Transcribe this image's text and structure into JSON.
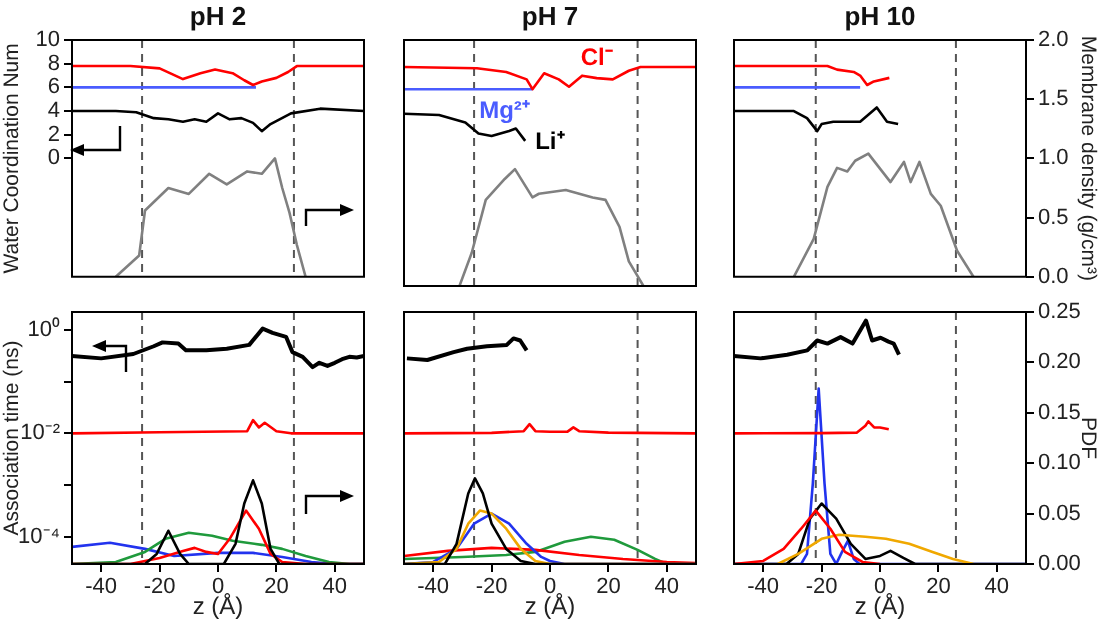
{
  "chart_data": [
    {
      "type": "line",
      "title": "pH 2",
      "ylabel": "Water Coordination Num",
      "xlim": [
        -50,
        50
      ],
      "ylim": [
        -10,
        10
      ],
      "yticks": [
        0,
        2,
        4,
        6,
        8,
        10
      ],
      "y2lim": [
        0,
        2
      ],
      "tick_labels": [
        "y"
      ],
      "marker": "none",
      "ref_lines": [
        {
          "axis": "x",
          "value": -26,
          "line_style": "dashed",
          "color": "#555555"
        },
        {
          "axis": "x",
          "value": 26,
          "line_style": "dashed",
          "color": "#555555"
        }
      ],
      "series": [
        {
          "color": "#ff0000",
          "x": [
            -50,
            -30,
            -20,
            -12,
            -6,
            -1,
            5,
            9,
            12,
            15,
            20,
            24,
            27,
            35,
            50
          ],
          "values": [
            7.8,
            7.8,
            7.6,
            6.7,
            7.2,
            7.5,
            7.2,
            6.6,
            6.2,
            6.5,
            6.8,
            7.3,
            7.8,
            7.8,
            7.8
          ]
        },
        {
          "color": "#4a5cff",
          "x": [
            -50,
            13
          ],
          "values": [
            6,
            6
          ]
        },
        {
          "color": "#000000",
          "x": [
            -50,
            -35,
            -28,
            -22,
            -17,
            -12,
            -8,
            -4,
            0,
            4,
            8,
            12,
            15,
            18,
            25,
            35,
            50
          ],
          "values": [
            4,
            4,
            3.9,
            3.4,
            3.3,
            3.1,
            3.3,
            3.1,
            3.8,
            3.3,
            3.4,
            3.0,
            2.3,
            2.9,
            3.8,
            4.2,
            4.0
          ]
        },
        {
          "color": "#808080",
          "axis": "y2",
          "x": [
            -35,
            -27,
            -25,
            -17,
            -10,
            -3,
            3,
            10,
            15,
            19.5,
            22,
            24.5,
            27,
            30
          ],
          "values": [
            0,
            0.18,
            0.56,
            0.75,
            0.7,
            0.87,
            0.78,
            0.89,
            0.87,
            1.0,
            0.75,
            0.54,
            0.27,
            0
          ]
        }
      ]
    },
    {
      "type": "line",
      "title": "pH 7",
      "xlim": [
        -50,
        50
      ],
      "ylim": [
        -10,
        10
      ],
      "y2lim": [
        0,
        2
      ],
      "tick_labels": false,
      "marker": "none",
      "ref_lines": [
        {
          "axis": "x",
          "value": -26,
          "line_style": "dashed",
          "color": "#555555"
        },
        {
          "axis": "x",
          "value": 30,
          "line_style": "dashed",
          "color": "#555555"
        }
      ],
      "series": [
        {
          "name": "Cl⁻",
          "color": "#ff0000",
          "x": [
            -50,
            -25,
            -15,
            -8,
            -6,
            -2,
            3,
            6.5,
            11,
            16,
            21.5,
            27,
            31,
            50
          ],
          "values": [
            7.8,
            7.7,
            7.4,
            6.8,
            6.0,
            7.3,
            6.8,
            6.2,
            7.1,
            6.9,
            6.8,
            7.5,
            7.8,
            7.8
          ]
        },
        {
          "name": "Mg²⁺",
          "color": "#4a5cff",
          "x": [
            -50,
            -6
          ],
          "values": [
            6,
            6
          ]
        },
        {
          "name": "Li⁺",
          "color": "#000000",
          "x": [
            -50,
            -38,
            -29,
            -24.5,
            -20,
            -14,
            -11.7,
            -8.5
          ],
          "values": [
            4,
            3.9,
            3.3,
            2.4,
            2.2,
            2.6,
            2.8,
            1.8
          ]
        },
        {
          "color": "#808080",
          "axis": "y2",
          "x": [
            -31,
            -26.8,
            -22,
            -15.5,
            -12,
            -6,
            -3.8,
            5.4,
            10,
            14.6,
            19,
            23.8,
            27,
            32
          ],
          "values": [
            0,
            0.27,
            0.7,
            0.87,
            0.95,
            0.72,
            0.75,
            0.78,
            0.75,
            0.72,
            0.7,
            0.48,
            0.2,
            0
          ]
        }
      ]
    },
    {
      "type": "line",
      "title": "pH 10",
      "y2label": "Membrane density (g/cm³)",
      "xlim": [
        -50,
        50
      ],
      "ylim": [
        -10,
        10
      ],
      "y2lim": [
        0,
        2
      ],
      "y2ticks": [
        {
          "value": 0,
          "label": "0.0"
        },
        {
          "value": 0.5,
          "label": "0.5"
        },
        {
          "value": 1,
          "label": "1.0"
        },
        {
          "value": 1.5,
          "label": "1.5"
        },
        {
          "value": 2,
          "label": "2.0"
        }
      ],
      "tick_labels": [
        "y2"
      ],
      "marker": "none",
      "ref_lines": [
        {
          "axis": "x",
          "value": -22,
          "line_style": "dashed",
          "color": "#555555"
        },
        {
          "axis": "x",
          "value": 26,
          "line_style": "dashed",
          "color": "#555555"
        }
      ],
      "series": [
        {
          "color": "#ff0000",
          "x": [
            -50,
            -18,
            -14.7,
            -9,
            -6.8,
            -4.4,
            -2.1,
            3.2
          ],
          "values": [
            7.8,
            7.8,
            7.5,
            7.3,
            7.0,
            6.2,
            6.5,
            6.8
          ]
        },
        {
          "color": "#4a5cff",
          "x": [
            -50,
            -6.8
          ],
          "values": [
            6,
            6
          ]
        },
        {
          "color": "#000000",
          "x": [
            -50,
            -29.5,
            -25,
            -21.5,
            -20,
            -16,
            -11.6,
            -6.8,
            -1.1,
            2.4,
            6.2
          ],
          "values": [
            4,
            4,
            3.4,
            2.3,
            2.9,
            3.1,
            3.1,
            3.1,
            4.3,
            3.1,
            2.9
          ]
        },
        {
          "color": "#808080",
          "axis": "y2",
          "x": [
            -29.5,
            -22.7,
            -18,
            -14.7,
            -11.2,
            -8.5,
            -4,
            3.6,
            8.2,
            10.5,
            13.5,
            17.4,
            20.8,
            26.4,
            32
          ],
          "values": [
            0,
            0.32,
            0.76,
            0.92,
            0.89,
            0.98,
            1.04,
            0.8,
            0.97,
            0.8,
            0.97,
            0.7,
            0.6,
            0.22,
            0
          ]
        }
      ]
    },
    {
      "type": "line",
      "xlabel": "z (Å)",
      "ylabel": "Association time (ns)",
      "log": "y",
      "xlim": [
        -50,
        50
      ],
      "xticks": [
        -40,
        -20,
        0,
        20,
        40
      ],
      "ylim": [
        3e-05,
        2.2
      ],
      "yticks": [
        {
          "value": 1,
          "label": "10⁰"
        },
        {
          "value": 0.1,
          "label": null
        },
        {
          "value": 0.01,
          "label": "10⁻²"
        },
        {
          "value": 0.001,
          "label": null
        },
        {
          "value": 0.0001,
          "label": "10⁻⁴"
        }
      ],
      "y2lim": [
        0,
        0.25
      ],
      "tick_labels": [
        "x",
        "y"
      ],
      "marker": "none",
      "ref_lines": [
        {
          "axis": "x",
          "value": -26,
          "line_style": "dashed",
          "color": "#555555"
        },
        {
          "axis": "x",
          "value": 26,
          "line_style": "dashed",
          "color": "#555555"
        }
      ],
      "series": [
        {
          "color": "#000000",
          "x": [
            -50,
            -40,
            -29,
            -22,
            -19,
            -13.6,
            -11,
            -4,
            3,
            10.7,
            15.3,
            18.7,
            23.3,
            25.5,
            29,
            32.4,
            34.7,
            37.5,
            40,
            42.5,
            45,
            47.5,
            50
          ],
          "values": [
            0.31,
            0.28,
            0.34,
            0.48,
            0.57,
            0.54,
            0.4,
            0.4,
            0.43,
            0.51,
            1.05,
            0.87,
            0.73,
            0.37,
            0.3,
            0.19,
            0.23,
            0.2,
            0.23,
            0.27,
            0.3,
            0.29,
            0.31
          ]
        },
        {
          "color": "#ff0000",
          "x": [
            -50,
            -20,
            10,
            12,
            14,
            16,
            20,
            25,
            50
          ],
          "values": [
            0.01,
            0.0105,
            0.011,
            0.018,
            0.013,
            0.016,
            0.011,
            0.01,
            0.01
          ]
        },
        {
          "color": "#000000",
          "axis": "y2",
          "x": [
            -50,
            -25,
            -21,
            -17,
            -13,
            -10,
            2,
            6,
            9,
            12,
            15,
            18,
            21,
            50
          ],
          "values": [
            0,
            0,
            0.01,
            0.033,
            0.01,
            0,
            0,
            0.02,
            0.06,
            0.083,
            0.06,
            0.015,
            0,
            0
          ]
        },
        {
          "color": "#ff0000",
          "axis": "y2",
          "x": [
            -50,
            -30,
            -20,
            -12,
            -8,
            -4,
            0,
            4,
            9.6,
            14,
            18,
            22,
            30,
            50
          ],
          "values": [
            0,
            0,
            0.006,
            0.013,
            0.016,
            0.012,
            0.01,
            0.025,
            0.053,
            0.035,
            0.01,
            0.002,
            0,
            0
          ]
        },
        {
          "color": "#1f9a3c",
          "axis": "y2",
          "x": [
            -50,
            -35,
            -25,
            -18,
            -10,
            -2,
            5,
            15,
            22,
            30,
            38,
            45,
            50
          ],
          "values": [
            0,
            0.002,
            0.012,
            0.025,
            0.031,
            0.028,
            0.023,
            0.019,
            0.015,
            0.008,
            0.002,
            0,
            0
          ]
        },
        {
          "color": "#2233ee",
          "axis": "y2",
          "x": [
            -50,
            -37,
            -25,
            -15,
            0,
            12,
            22,
            32,
            40,
            50
          ],
          "values": [
            0.017,
            0.021,
            0.015,
            0.008,
            0.011,
            0.011,
            0.007,
            0.002,
            0,
            0
          ]
        }
      ]
    },
    {
      "type": "line",
      "xlabel": "z (Å)",
      "log": "y",
      "xlim": [
        -50,
        50
      ],
      "xticks": [
        -40,
        -20,
        0,
        20,
        40
      ],
      "ylim": [
        3e-05,
        2.2
      ],
      "y2lim": [
        0,
        0.25
      ],
      "tick_labels": [
        "x"
      ],
      "marker": "none",
      "ref_lines": [
        {
          "axis": "x",
          "value": -26,
          "line_style": "dashed",
          "color": "#555555"
        },
        {
          "axis": "x",
          "value": 30,
          "line_style": "dashed",
          "color": "#555555"
        }
      ],
      "series": [
        {
          "color": "#000000",
          "x": [
            -49,
            -42,
            -33,
            -28.4,
            -21.6,
            -14.8,
            -12.5,
            -10.2,
            -8
          ],
          "values": [
            0.28,
            0.26,
            0.37,
            0.43,
            0.48,
            0.51,
            0.68,
            0.62,
            0.4
          ]
        },
        {
          "color": "#ff0000",
          "x": [
            -50,
            -20,
            -9,
            -7,
            -5,
            0,
            6,
            8,
            10,
            20,
            50
          ],
          "values": [
            0.01,
            0.0102,
            0.011,
            0.015,
            0.011,
            0.0107,
            0.0108,
            0.013,
            0.011,
            0.0103,
            0.01
          ]
        },
        {
          "color": "#000000",
          "axis": "y2",
          "x": [
            -50,
            -36,
            -32,
            -28,
            -25.7,
            -23,
            -20,
            -15,
            -10,
            -5,
            50
          ],
          "values": [
            0,
            0,
            0.02,
            0.07,
            0.085,
            0.07,
            0.04,
            0.015,
            0.003,
            0,
            0
          ]
        },
        {
          "color": "#f0a800",
          "axis": "y2",
          "x": [
            -50,
            -38,
            -32,
            -28,
            -24,
            -20,
            -15,
            -10,
            -5,
            0,
            50
          ],
          "values": [
            0,
            0.002,
            0.015,
            0.04,
            0.053,
            0.05,
            0.035,
            0.015,
            0.003,
            0,
            0
          ]
        },
        {
          "color": "#2233ee",
          "axis": "y2",
          "x": [
            -50,
            -40,
            -32,
            -26,
            -20,
            -14,
            -8,
            -3,
            0,
            5,
            50
          ],
          "values": [
            0,
            0.002,
            0.015,
            0.04,
            0.05,
            0.04,
            0.02,
            0.007,
            0.003,
            0,
            0
          ]
        },
        {
          "color": "#ff0000",
          "axis": "y2",
          "x": [
            -50,
            -35,
            -20,
            -5,
            10,
            25,
            40,
            50
          ],
          "values": [
            0.008,
            0.013,
            0.016,
            0.014,
            0.009,
            0.005,
            0.002,
            0.001
          ]
        },
        {
          "color": "#1f9a3c",
          "axis": "y2",
          "x": [
            -50,
            -30,
            -15,
            -5,
            5,
            14,
            22,
            30,
            36,
            40,
            50
          ],
          "values": [
            0.005,
            0.007,
            0.009,
            0.012,
            0.022,
            0.027,
            0.024,
            0.014,
            0.005,
            0,
            0
          ]
        }
      ]
    },
    {
      "type": "line",
      "xlabel": "z (Å)",
      "y2label": "PDF",
      "log": "y",
      "xlim": [
        -50,
        50
      ],
      "xticks": [
        -40,
        -20,
        0,
        20,
        40
      ],
      "ylim": [
        3e-05,
        2.2
      ],
      "y2lim": [
        0,
        0.25
      ],
      "y2ticks": [
        {
          "value": 0,
          "label": "0.00"
        },
        {
          "value": 0.05,
          "label": "0.05"
        },
        {
          "value": 0.1,
          "label": "0.10"
        },
        {
          "value": 0.15,
          "label": "0.15"
        },
        {
          "value": 0.2,
          "label": "0.20"
        },
        {
          "value": 0.25,
          "label": "0.25"
        }
      ],
      "tick_labels": [
        "x",
        "y2"
      ],
      "marker": "none",
      "ref_lines": [
        {
          "axis": "x",
          "value": -22,
          "line_style": "dashed",
          "color": "#555555"
        },
        {
          "axis": "x",
          "value": 26,
          "line_style": "dashed",
          "color": "#555555"
        }
      ],
      "series": [
        {
          "color": "#000000",
          "x": [
            -50,
            -40.9,
            -31.8,
            -24.9,
            -21.5,
            -18,
            -13.5,
            -9.4,
            -4.8,
            -2.7,
            0.2,
            2.9,
            4.7,
            6.5
          ],
          "values": [
            0.31,
            0.28,
            0.33,
            0.4,
            0.62,
            0.54,
            0.72,
            0.54,
            1.5,
            0.62,
            0.7,
            0.59,
            0.54,
            0.33
          ]
        },
        {
          "color": "#ff0000",
          "x": [
            -50,
            -20,
            -8,
            -5,
            -4,
            -2,
            0,
            3
          ],
          "values": [
            0.01,
            0.0101,
            0.0103,
            0.014,
            0.017,
            0.013,
            0.013,
            0.012
          ]
        },
        {
          "color": "#ff0000",
          "axis": "y2",
          "x": [
            -50,
            -40,
            -33,
            -27,
            -22,
            -17,
            -12,
            -6,
            0
          ],
          "values": [
            0,
            0.003,
            0.015,
            0.035,
            0.053,
            0.035,
            0.012,
            0.002,
            0
          ]
        },
        {
          "color": "#f0a800",
          "axis": "y2",
          "x": [
            -35,
            -28,
            -20,
            -14,
            -5,
            2,
            10,
            18,
            25,
            32
          ],
          "values": [
            0,
            0.01,
            0.025,
            0.029,
            0.027,
            0.025,
            0.02,
            0.012,
            0.005,
            0
          ]
        },
        {
          "color": "#000000",
          "axis": "y2",
          "x": [
            -50,
            -32,
            -28,
            -24,
            -20,
            -15,
            -10,
            -5,
            0,
            3.6,
            8,
            12,
            50
          ],
          "values": [
            0,
            0,
            0.01,
            0.045,
            0.06,
            0.045,
            0.02,
            0.005,
            0.008,
            0.013,
            0.006,
            0,
            0
          ]
        },
        {
          "color": "#2233ee",
          "axis": "y2",
          "x": [
            -50,
            -27,
            -25,
            -23,
            -21,
            -19,
            -17,
            -15,
            -13,
            -11,
            -9,
            -7,
            50
          ],
          "values": [
            0,
            0,
            0.01,
            0.08,
            0.174,
            0.08,
            0.01,
            0,
            0.012,
            0.023,
            0.005,
            0,
            0
          ]
        }
      ]
    }
  ]
}
